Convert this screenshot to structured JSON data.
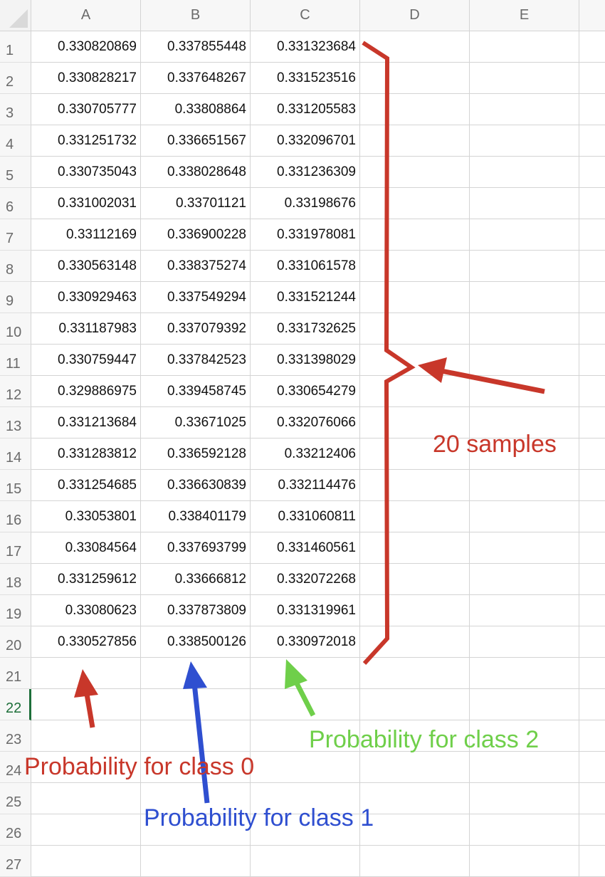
{
  "sheet": {
    "columns": [
      "A",
      "B",
      "C",
      "D",
      "E"
    ],
    "row_numbers": [
      "1",
      "2",
      "3",
      "4",
      "5",
      "6",
      "7",
      "8",
      "9",
      "10",
      "11",
      "12",
      "13",
      "14",
      "15",
      "16",
      "17",
      "18",
      "19",
      "20",
      "21",
      "22",
      "23",
      "24",
      "25",
      "26",
      "27"
    ],
    "active_row": "22",
    "rows": [
      [
        "0.330820869",
        "0.337855448",
        "0.331323684"
      ],
      [
        "0.330828217",
        "0.337648267",
        "0.331523516"
      ],
      [
        "0.330705777",
        "0.33808864",
        "0.331205583"
      ],
      [
        "0.331251732",
        "0.336651567",
        "0.332096701"
      ],
      [
        "0.330735043",
        "0.338028648",
        "0.331236309"
      ],
      [
        "0.331002031",
        "0.33701121",
        "0.33198676"
      ],
      [
        "0.33112169",
        "0.336900228",
        "0.331978081"
      ],
      [
        "0.330563148",
        "0.338375274",
        "0.331061578"
      ],
      [
        "0.330929463",
        "0.337549294",
        "0.331521244"
      ],
      [
        "0.331187983",
        "0.337079392",
        "0.331732625"
      ],
      [
        "0.330759447",
        "0.337842523",
        "0.331398029"
      ],
      [
        "0.329886975",
        "0.339458745",
        "0.330654279"
      ],
      [
        "0.331213684",
        "0.33671025",
        "0.332076066"
      ],
      [
        "0.331283812",
        "0.336592128",
        "0.33212406"
      ],
      [
        "0.331254685",
        "0.336630839",
        "0.332114476"
      ],
      [
        "0.33053801",
        "0.338401179",
        "0.331060811"
      ],
      [
        "0.33084564",
        "0.337693799",
        "0.331460561"
      ],
      [
        "0.331259612",
        "0.33666812",
        "0.332072268"
      ],
      [
        "0.33080623",
        "0.337873809",
        "0.331319961"
      ],
      [
        "0.330527856",
        "0.338500126",
        "0.330972018"
      ]
    ]
  },
  "annotations": {
    "samples_label": "20 samples",
    "class0_label": "Probability for class 0",
    "class1_label": "Probability for class 1",
    "class2_label": "Probability for class 2"
  },
  "colors": {
    "red": "#c8372a",
    "blue": "#2f4fd0",
    "green": "#6fcf4a",
    "active_green": "#1e6f3a"
  }
}
